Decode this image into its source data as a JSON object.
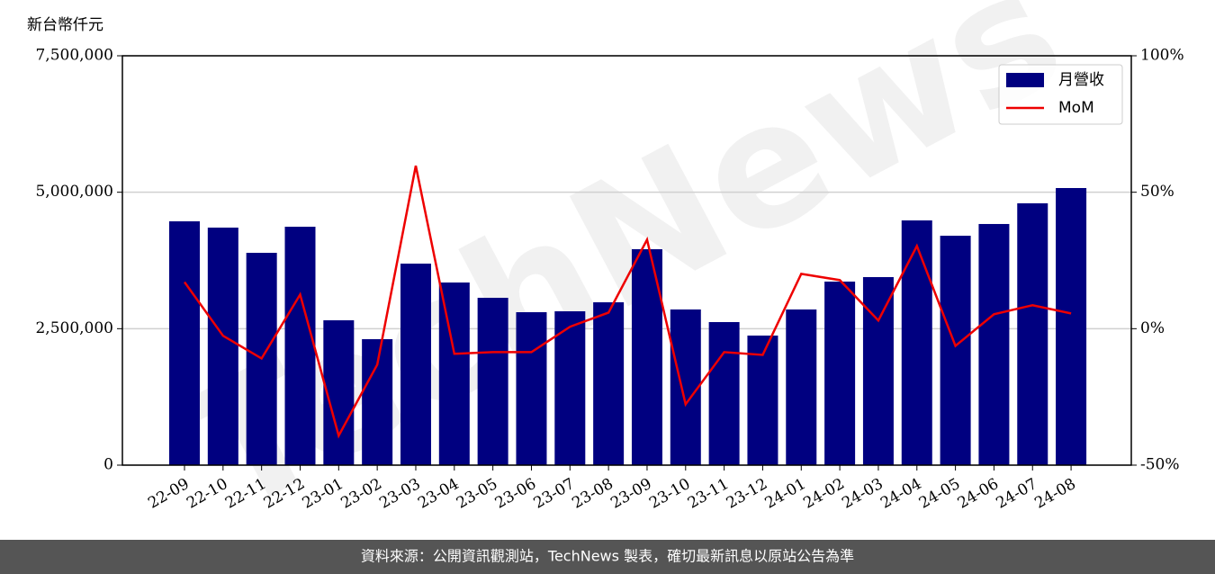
{
  "chart_data": {
    "type": "bar",
    "ylabel": "新台幣仟元",
    "watermark": "TechNews",
    "footer": "資料來源：公開資訊觀測站，TechNews 製表，確切最新訊息以原站公告為準",
    "categories": [
      "22-09",
      "22-10",
      "22-11",
      "22-12",
      "23-01",
      "23-02",
      "23-03",
      "23-04",
      "23-05",
      "23-06",
      "23-07",
      "23-08",
      "23-09",
      "23-10",
      "23-11",
      "23-12",
      "24-01",
      "24-02",
      "24-03",
      "24-04",
      "24-05",
      "24-06",
      "24-07",
      "24-08"
    ],
    "series": [
      {
        "name": "月營收",
        "type": "bar",
        "color": "#000080",
        "values": [
          4467000,
          4352000,
          3890000,
          4368000,
          2654000,
          2308000,
          3692000,
          3346000,
          3066000,
          2802000,
          2819000,
          2984000,
          3956000,
          2852000,
          2621000,
          2374000,
          2852000,
          3363000,
          3445000,
          4484000,
          4203000,
          4418000,
          4797000,
          5077000
        ]
      },
      {
        "name": "MoM",
        "type": "line",
        "axis": "y2",
        "color": "#ee0000",
        "values": [
          17.1,
          -2.6,
          -10.9,
          12.5,
          -39.2,
          -13.2,
          59.7,
          -9.2,
          -8.6,
          -8.6,
          0.7,
          5.9,
          32.6,
          -27.7,
          -8.6,
          -9.6,
          20.1,
          17.8,
          3.0,
          30.3,
          -6.3,
          5.3,
          8.6,
          5.6
        ]
      }
    ],
    "ylim": [
      0,
      7500000
    ],
    "yticks": [
      0,
      {
        "value": 2500000,
        "label": "2,500,000"
      },
      {
        "value": 5000000,
        "label": "5,000,000"
      },
      {
        "value": 7500000,
        "label": "7,500,000"
      }
    ],
    "y2lim": [
      -50,
      100
    ],
    "y2ticks": [
      {
        "value": -50,
        "label": "-50%"
      },
      {
        "value": 0,
        "label": "0%"
      },
      {
        "value": 50,
        "label": "50%"
      },
      {
        "value": 100,
        "label": "100%"
      }
    ],
    "grid": true,
    "legend": "upper right"
  }
}
